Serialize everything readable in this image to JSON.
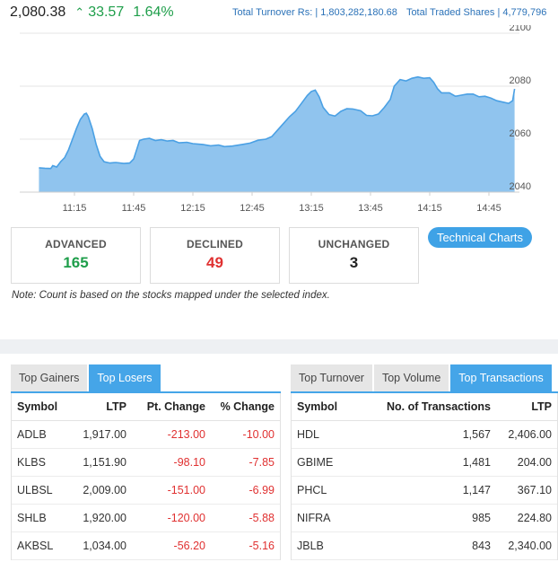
{
  "index": {
    "value": "2,080.38",
    "arrow_icon": "up-caret-icon",
    "change": "33.57",
    "percent": "1.64%"
  },
  "totals": {
    "turnover_label": "Total Turnover Rs: |",
    "turnover_value": "1,803,282,180.68",
    "shares_label": "Total Traded Shares |",
    "shares_value": "4,779,796"
  },
  "chart_data": {
    "type": "area",
    "x_ticks": [
      "11:15",
      "11:45",
      "12:15",
      "12:45",
      "13:15",
      "13:45",
      "14:15",
      "14:45"
    ],
    "y_ticks": [
      "2100",
      "2080",
      "2060",
      "2040"
    ],
    "ylim": [
      2040,
      2100
    ],
    "fill_color": "#90c4ee",
    "line_color": "#4aa0e4",
    "points": [
      [
        "10:57",
        2049.2
      ],
      [
        "11:00",
        2049.0
      ],
      [
        "11:03",
        2048.9
      ],
      [
        "11:04",
        2050.0
      ],
      [
        "11:06",
        2049.5
      ],
      [
        "11:08",
        2051.5
      ],
      [
        "11:10",
        2053.0
      ],
      [
        "11:12",
        2056.0
      ],
      [
        "11:14",
        2060.0
      ],
      [
        "11:16",
        2064.0
      ],
      [
        "11:18",
        2067.5
      ],
      [
        "11:20",
        2069.5
      ],
      [
        "11:21",
        2069.8
      ],
      [
        "11:22",
        2068.5
      ],
      [
        "11:24",
        2064.0
      ],
      [
        "11:26",
        2058.0
      ],
      [
        "11:28",
        2053.5
      ],
      [
        "11:30",
        2051.5
      ],
      [
        "11:33",
        2051.0
      ],
      [
        "11:36",
        2051.2
      ],
      [
        "11:40",
        2050.8
      ],
      [
        "11:43",
        2051.0
      ],
      [
        "11:45",
        2052.5
      ],
      [
        "11:48",
        2059.5
      ],
      [
        "11:50",
        2060.0
      ],
      [
        "11:53",
        2060.3
      ],
      [
        "11:56",
        2059.5
      ],
      [
        "11:59",
        2059.8
      ],
      [
        "12:02",
        2059.3
      ],
      [
        "12:05",
        2059.5
      ],
      [
        "12:08",
        2058.6
      ],
      [
        "12:12",
        2058.8
      ],
      [
        "12:15",
        2058.3
      ],
      [
        "12:20",
        2058.0
      ],
      [
        "12:24",
        2057.5
      ],
      [
        "12:28",
        2057.8
      ],
      [
        "12:31",
        2057.2
      ],
      [
        "12:35",
        2057.4
      ],
      [
        "12:40",
        2058.0
      ],
      [
        "12:44",
        2058.5
      ],
      [
        "12:48",
        2059.6
      ],
      [
        "12:52",
        2060.0
      ],
      [
        "12:55",
        2061.0
      ],
      [
        "12:58",
        2063.5
      ],
      [
        "13:01",
        2066.0
      ],
      [
        "13:04",
        2068.5
      ],
      [
        "13:07",
        2070.5
      ],
      [
        "13:10",
        2073.5
      ],
      [
        "13:13",
        2076.5
      ],
      [
        "13:15",
        2078.0
      ],
      [
        "13:17",
        2078.5
      ],
      [
        "13:19",
        2076.0
      ],
      [
        "13:21",
        2072.0
      ],
      [
        "13:24",
        2069.3
      ],
      [
        "13:27",
        2068.7
      ],
      [
        "13:30",
        2070.5
      ],
      [
        "13:33",
        2071.5
      ],
      [
        "13:36",
        2071.4
      ],
      [
        "13:40",
        2070.7
      ],
      [
        "13:43",
        2069.0
      ],
      [
        "13:46",
        2068.8
      ],
      [
        "13:49",
        2069.5
      ],
      [
        "13:52",
        2072.0
      ],
      [
        "13:55",
        2075.0
      ],
      [
        "13:57",
        2080.0
      ],
      [
        "14:00",
        2082.5
      ],
      [
        "14:03",
        2082.0
      ],
      [
        "14:06",
        2083.0
      ],
      [
        "14:09",
        2083.5
      ],
      [
        "14:12",
        2083.0
      ],
      [
        "14:15",
        2083.2
      ],
      [
        "14:17",
        2081.5
      ],
      [
        "14:19",
        2079.0
      ],
      [
        "14:21",
        2077.5
      ],
      [
        "14:25",
        2077.5
      ],
      [
        "14:28",
        2076.2
      ],
      [
        "14:31",
        2076.6
      ],
      [
        "14:34",
        2077.0
      ],
      [
        "14:37",
        2077.0
      ],
      [
        "14:40",
        2076.0
      ],
      [
        "14:43",
        2076.2
      ],
      [
        "14:46",
        2075.5
      ],
      [
        "14:49",
        2074.5
      ],
      [
        "14:52",
        2074.0
      ],
      [
        "14:55",
        2073.5
      ],
      [
        "14:57",
        2074.5
      ],
      [
        "14:58",
        2079.0
      ]
    ]
  },
  "stats": {
    "advanced_label": "ADVANCED",
    "advanced_value": "165",
    "declined_label": "DECLINED",
    "declined_value": "49",
    "unchanged_label": "UNCHANGED",
    "unchanged_value": "3"
  },
  "tech_charts_label": "Technical Charts",
  "note": "Note: Count is based on the stocks mapped under the selected index.",
  "left_panel": {
    "tabs": [
      "Top Gainers",
      "Top Losers"
    ],
    "active_tab": "Top Losers",
    "headers": [
      "Symbol",
      "LTP",
      "Pt. Change",
      "% Change"
    ],
    "rows": [
      [
        "ADLB",
        "1,917.00",
        "-213.00",
        "-10.00"
      ],
      [
        "KLBS",
        "1,151.90",
        "-98.10",
        "-7.85"
      ],
      [
        "ULBSL",
        "2,009.00",
        "-151.00",
        "-6.99"
      ],
      [
        "SHLB",
        "1,920.00",
        "-120.00",
        "-5.88"
      ],
      [
        "AKBSL",
        "1,034.00",
        "-56.20",
        "-5.16"
      ]
    ]
  },
  "right_panel": {
    "tabs": [
      "Top Turnover",
      "Top Volume",
      "Top Transactions"
    ],
    "active_tab": "Top Transactions",
    "headers": [
      "Symbol",
      "No. of Transactions",
      "LTP"
    ],
    "rows": [
      [
        "HDL",
        "1,567",
        "2,406.00"
      ],
      [
        "GBIME",
        "1,481",
        "204.00"
      ],
      [
        "PHCL",
        "1,147",
        "367.10"
      ],
      [
        "NIFRA",
        "985",
        "224.80"
      ],
      [
        "JBLB",
        "843",
        "2,340.00"
      ]
    ]
  }
}
